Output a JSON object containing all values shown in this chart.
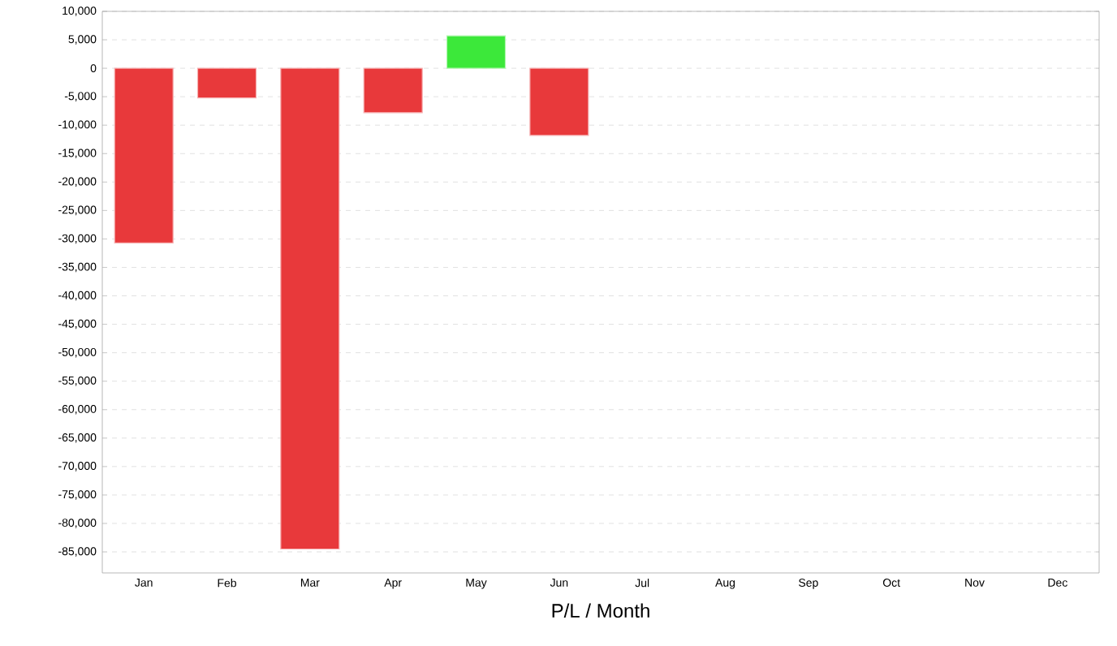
{
  "chart_data": {
    "type": "bar",
    "xlabel": "P/L / Month",
    "categories": [
      "Jan",
      "Feb",
      "Mar",
      "Apr",
      "May",
      "Jun",
      "Jul",
      "Aug",
      "Sep",
      "Oct",
      "Nov",
      "Dec"
    ],
    "values": [
      -30700,
      -5200,
      -84500,
      -7800,
      5700,
      -11800,
      null,
      null,
      null,
      null,
      null,
      null
    ],
    "colors": [
      "#e8393b",
      "#e8393b",
      "#e8393b",
      "#e8393b",
      "#3ce83a",
      "#e8393b",
      null,
      null,
      null,
      null,
      null,
      null
    ],
    "ylim": [
      -88700,
      10000
    ],
    "yticks": [
      {
        "value": -85000,
        "label": "-85,000"
      },
      {
        "value": -80000,
        "label": "-80,000"
      },
      {
        "value": -75000,
        "label": "-75,000"
      },
      {
        "value": -70000,
        "label": "-70,000"
      },
      {
        "value": -65000,
        "label": "-65,000"
      },
      {
        "value": -60000,
        "label": "-60,000"
      },
      {
        "value": -55000,
        "label": "-55,000"
      },
      {
        "value": -50000,
        "label": "-50,000"
      },
      {
        "value": -45000,
        "label": "-45,000"
      },
      {
        "value": -40000,
        "label": "-40,000"
      },
      {
        "value": -35000,
        "label": "-35,000"
      },
      {
        "value": -30000,
        "label": "-30,000"
      },
      {
        "value": -25000,
        "label": "-25,000"
      },
      {
        "value": -20000,
        "label": "-20,000"
      },
      {
        "value": -15000,
        "label": "-15,000"
      },
      {
        "value": -10000,
        "label": "-10,000"
      },
      {
        "value": -5000,
        "label": "-5,000"
      },
      0,
      {
        "value": 5000,
        "label": "5,000"
      },
      {
        "value": 10000,
        "label": "10,000"
      }
    ],
    "grid": "y"
  }
}
